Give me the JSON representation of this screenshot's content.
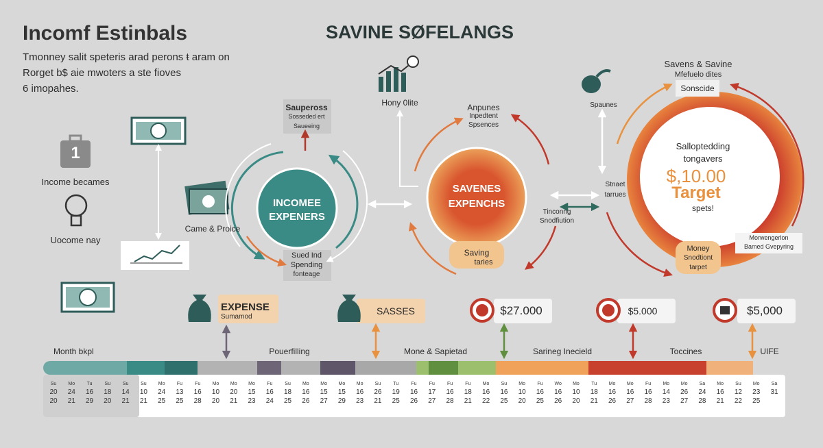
{
  "header": {
    "title": "Incomf Estinbals",
    "subtitle": [
      "Tmonney salit speteris arad perons ŧ aram on",
      "Rorget b$ aie mwoters a ste fioves",
      "6 imopahes."
    ],
    "center_title": "SAVINE SØFELANGS"
  },
  "left": {
    "icon_number": "1",
    "income_label": "Income becames",
    "idea_label": "Uocome nay",
    "cash_label": "Came & Proice"
  },
  "flow": {
    "top_box": [
      "Saupeross",
      "Sosseded ert",
      "Saueeing"
    ],
    "circle1": [
      "INCOMEE",
      "EXPENERS"
    ],
    "bottom_box": [
      "Sued Ind",
      "Spending",
      "fonteage"
    ],
    "chart_label": "Hony 0lite",
    "annotation2": [
      "Anpunes",
      "Inpedtent",
      "Spsences"
    ],
    "circle2": [
      "SAVENES",
      "EXPENCHS"
    ],
    "circle2_tab": [
      "Saving",
      "taries"
    ],
    "side_label": [
      "Tinconng",
      "Snodfiution"
    ],
    "food_label": "Spaunes",
    "side_label2": [
      "Stnaet",
      "tarrues"
    ],
    "right_head": [
      "Savens & Savine",
      "Mfefuelo dites"
    ],
    "right_tab": "Sonscide",
    "circle3": [
      "Salloptedding",
      "tongavers",
      "$,10.00",
      "Target",
      "spets!"
    ],
    "circle3_tab": [
      "Money",
      "Snodtiont",
      "tarpet"
    ],
    "note": [
      "Morwengerlon",
      "Bamed Gvepyring"
    ]
  },
  "tags": [
    {
      "title": "EXPENSE",
      "sub": "Sumamod"
    },
    {
      "title": "SASSES"
    },
    {
      "title": "$27.000"
    },
    {
      "title": "$5.000"
    },
    {
      "title": "$5,000"
    }
  ],
  "timeline": {
    "labels": [
      "Month bkpl",
      "Pouerfilling",
      "Mone & Sapietad",
      "Sarineg Inecield",
      "Toccines",
      "UIFE"
    ],
    "calendar": {
      "days": [
        "Su",
        "Mo",
        "Tu",
        "Su",
        "Su",
        "Su",
        "Mo",
        "Fu",
        "Fu",
        "Mo",
        "Mo",
        "Mo",
        "Fu",
        "Su",
        "Mo",
        "Mo",
        "Mo",
        "Mo",
        "Su",
        "Tu",
        "Fu",
        "Fu",
        "Fu",
        "Fu",
        "Mo",
        "Su",
        "Mo",
        "Fu",
        "Wo",
        "Mo",
        "Tu",
        "Mo",
        "Mo",
        "Fu",
        "Mo",
        "Mo",
        "Sa",
        "Mo",
        "Su",
        "Mo",
        "Sa"
      ],
      "row1": [
        "20",
        "24",
        "16",
        "18",
        "14",
        "10",
        "24",
        "13",
        "16",
        "10",
        "20",
        "15",
        "16",
        "18",
        "16",
        "15",
        "15",
        "16",
        "26",
        "19",
        "16",
        "17",
        "16",
        "18",
        "16",
        "16",
        "10",
        "16",
        "16",
        "10",
        "18",
        "16",
        "16",
        "16",
        "14",
        "26",
        "24",
        "16",
        "12",
        "23",
        "31"
      ],
      "row2": [
        "20",
        "21",
        "29",
        "20",
        "21",
        "21",
        "25",
        "25",
        "28",
        "20",
        "21",
        "23",
        "24",
        "25",
        "26",
        "27",
        "29",
        "23",
        "21",
        "25",
        "26",
        "27",
        "28",
        "21",
        "22",
        "25",
        "20",
        "25",
        "26",
        "20",
        "21",
        "26",
        "27",
        "28",
        "23",
        "27",
        "28",
        "21",
        "22",
        "25"
      ]
    }
  }
}
